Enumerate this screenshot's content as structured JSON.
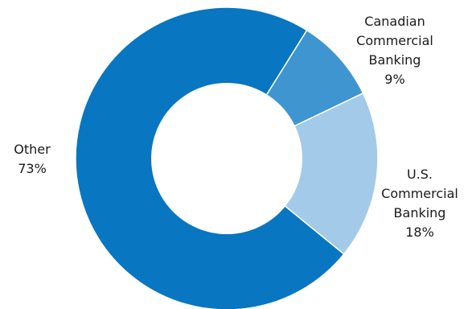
{
  "chart_data": {
    "type": "pie",
    "variant": "donut",
    "slices": [
      {
        "label_lines": [
          "Canadian",
          "Commercial",
          "Banking"
        ],
        "value_text": "9%",
        "value": 9,
        "color": "#3e95d0"
      },
      {
        "label_lines": [
          "U.S.",
          "Commercial",
          "Banking"
        ],
        "value_text": "18%",
        "value": 18,
        "color": "#a3cbe9"
      },
      {
        "label_lines": [
          "Other"
        ],
        "value_text": "73%",
        "value": 73,
        "color": "#0876c1"
      }
    ]
  }
}
